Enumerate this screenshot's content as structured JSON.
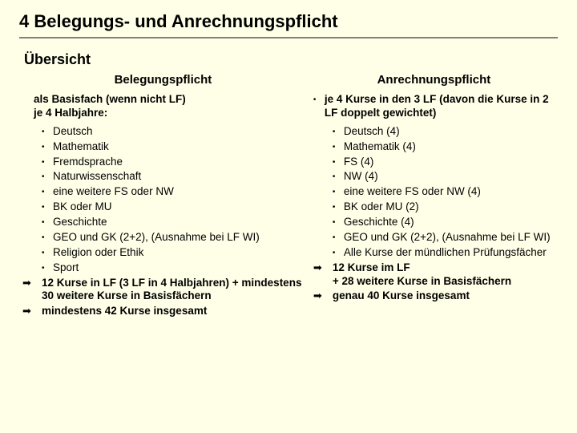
{
  "title": "4 Belegungs- und Anrechnungspflicht",
  "subtitle": "Übersicht",
  "left": {
    "header": "Belegungspflicht",
    "intro": "als Basisfach (wenn nicht LF)\nje 4 Halbjahre:",
    "items": [
      "Deutsch",
      "Mathematik",
      "Fremdsprache",
      "Naturwissenschaft",
      "eine weitere FS oder NW",
      "BK oder MU",
      "Geschichte",
      "GEO und GK (2+2), (Ausnahme bei LF WI)",
      "Religion oder Ethik",
      "Sport"
    ],
    "summary": [
      "12 Kurse in LF (3 LF in 4 Halbjahren) + mindestens 30 weitere Kurse in Basisfächern",
      "mindestens 42 Kurse insgesamt"
    ]
  },
  "right": {
    "header": "Anrechnungspflicht",
    "intro": "je 4 Kurse in den 3 LF (davon die Kurse in 2 LF doppelt gewichtet)",
    "items": [
      "Deutsch (4)",
      "Mathematik (4)",
      "FS (4)",
      "NW (4)",
      "eine weitere FS oder NW (4)",
      "BK oder MU (2)",
      "Geschichte (4)",
      "GEO und GK (2+2), (Ausnahme bei LF WI)",
      "Alle Kurse der mündlichen Prüfungsfächer"
    ],
    "summary": [
      "12 Kurse im LF\n+ 28 weitere Kurse in Basisfächern",
      "genau 40 Kurse insgesamt"
    ]
  },
  "bullet": "•",
  "arrow": "➡"
}
